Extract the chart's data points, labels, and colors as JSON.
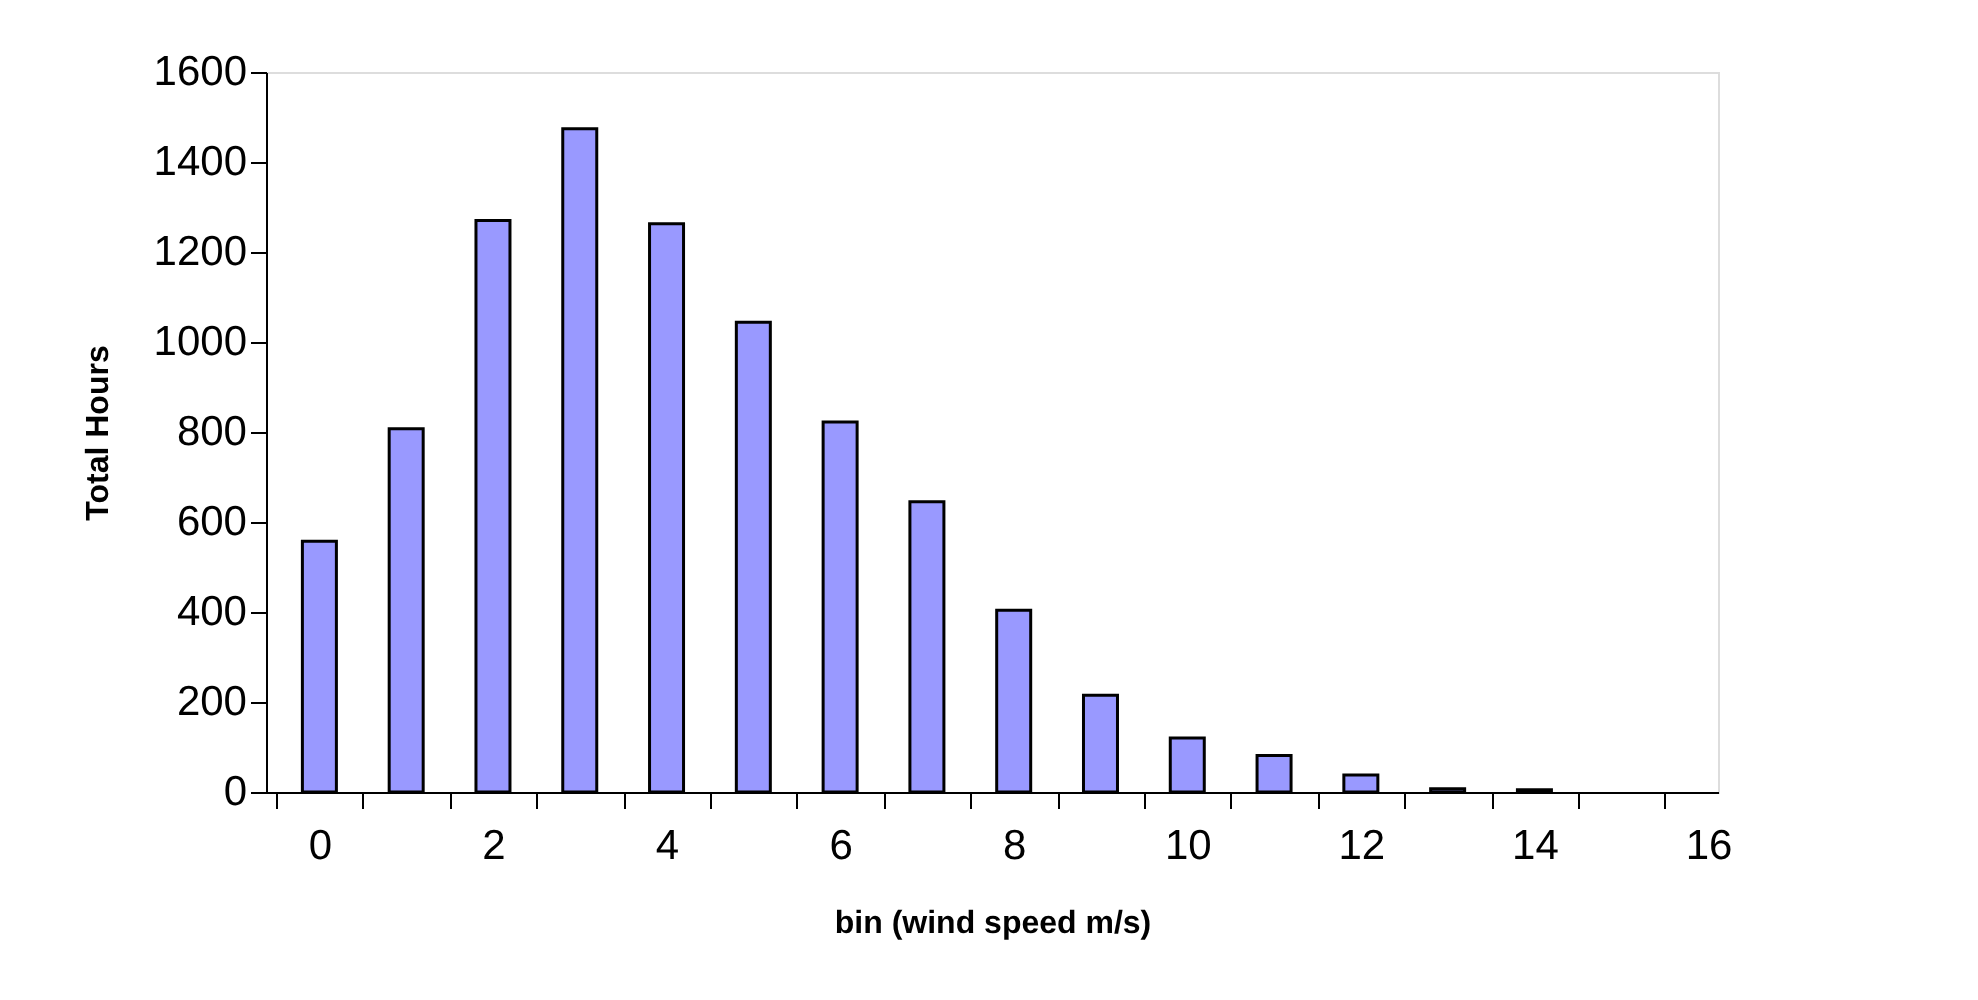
{
  "chart_data": {
    "type": "bar",
    "xlabel": "bin (wind speed m/s)",
    "ylabel": "Total Hours",
    "x": [
      0,
      1,
      2,
      3,
      4,
      5,
      6,
      7,
      8,
      9,
      10,
      11,
      12,
      13,
      14
    ],
    "values": [
      557,
      807,
      1270,
      1474,
      1263,
      1044,
      822,
      645,
      404,
      215,
      120,
      81,
      38,
      7,
      5
    ],
    "color": "#9999ff",
    "xlim": [
      -0.5,
      16
    ],
    "xticks": [
      {
        "value": -0.5,
        "label": null
      },
      0,
      {
        "value": 0.5,
        "label": null
      },
      {
        "value": 1.5,
        "label": null
      },
      2,
      {
        "value": 2.5,
        "label": null
      },
      {
        "value": 3.5,
        "label": null
      },
      4,
      {
        "value": 4.5,
        "label": null
      },
      {
        "value": 5.5,
        "label": null
      },
      6,
      {
        "value": 6.5,
        "label": null
      },
      {
        "value": 7.5,
        "label": null
      },
      8,
      {
        "value": 8.5,
        "label": null
      },
      {
        "value": 9.5,
        "label": null
      },
      10,
      {
        "value": 10.5,
        "label": null
      },
      {
        "value": 11.5,
        "label": null
      },
      12,
      {
        "value": 12.5,
        "label": null
      },
      {
        "value": 13.5,
        "label": null
      },
      14,
      {
        "value": 14.5,
        "label": null
      },
      {
        "value": 15.5,
        "label": null
      },
      16
    ],
    "ylim": [
      0,
      1600
    ],
    "yticks": [
      0,
      200,
      400,
      600,
      800,
      1000,
      1200,
      1400,
      1600
    ]
  }
}
